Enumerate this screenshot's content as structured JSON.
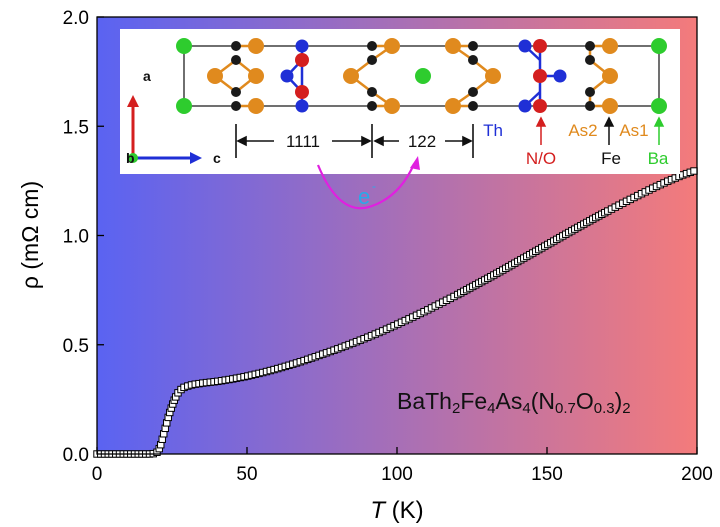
{
  "chart_data": {
    "type": "scatter",
    "xlabel_var": "T",
    "xlabel_unit": " (K)",
    "ylabel": "ρ (mΩ cm)",
    "xlim": [
      0,
      200
    ],
    "ylim": [
      0,
      2.0
    ],
    "x_ticks": [
      "0",
      "50",
      "100",
      "150",
      "200"
    ],
    "y_ticks": [
      "0.0",
      "0.5",
      "1.0",
      "1.5",
      "2.0"
    ],
    "background_gradient": [
      "#5a63f2",
      "#f47b7b"
    ],
    "marker_color": "#000000",
    "formula": {
      "parts": [
        {
          "t": "BaTh",
          "s": ""
        },
        {
          "t": "2",
          "s": "sub"
        },
        {
          "t": "Fe",
          "s": ""
        },
        {
          "t": "4",
          "s": "sub"
        },
        {
          "t": "As",
          "s": ""
        },
        {
          "t": "4",
          "s": "sub"
        },
        {
          "t": "(N",
          "s": ""
        },
        {
          "t": "0.7",
          "s": "sub"
        },
        {
          "t": "O",
          "s": ""
        },
        {
          "t": "0.3",
          "s": "sub"
        },
        {
          "t": ")",
          "s": ""
        },
        {
          "t": "2",
          "s": "sub"
        }
      ]
    },
    "series": [
      {
        "x": [
          0,
          2,
          4,
          6,
          8,
          10,
          12,
          14,
          16,
          18,
          19,
          20,
          21,
          22,
          23,
          24,
          25,
          26,
          27,
          28,
          29,
          30,
          32,
          34,
          36,
          38,
          40,
          45,
          50,
          55,
          60,
          65,
          70,
          75,
          80,
          85,
          90,
          95,
          100,
          105,
          110,
          115,
          120,
          125,
          130,
          135,
          140,
          145,
          150,
          155,
          160,
          165,
          170,
          175,
          180,
          185,
          190,
          195,
          200
        ],
        "y": [
          0,
          0,
          0,
          0,
          0,
          0,
          0,
          0,
          0,
          0,
          0.002,
          0.008,
          0.03,
          0.08,
          0.13,
          0.18,
          0.22,
          0.255,
          0.28,
          0.295,
          0.305,
          0.31,
          0.318,
          0.322,
          0.326,
          0.329,
          0.332,
          0.343,
          0.356,
          0.372,
          0.39,
          0.41,
          0.432,
          0.456,
          0.48,
          0.506,
          0.533,
          0.562,
          0.593,
          0.625,
          0.658,
          0.693,
          0.728,
          0.765,
          0.802,
          0.84,
          0.879,
          0.918,
          0.957,
          0.996,
          1.035,
          1.073,
          1.11,
          1.146,
          1.181,
          1.215,
          1.247,
          1.276,
          1.3
        ]
      }
    ]
  },
  "inset": {
    "labels": {
      "len1111": "1111",
      "len122": "122",
      "th": "Th",
      "no": "N/O",
      "as2": "As2",
      "fe": "Fe",
      "as1": "As1",
      "ba": "Ba",
      "axis_a": "a",
      "axis_b": "b",
      "axis_c": "c",
      "electron": "e"
    },
    "colors": {
      "ba": "#2ecc2e",
      "as": "#e08a1e",
      "fe": "#1a1a1a",
      "th": "#1f2fd6",
      "no": "#d41f1f",
      "electron_arrow": "#e020e0",
      "electron_text": "#2aa9e8"
    }
  }
}
